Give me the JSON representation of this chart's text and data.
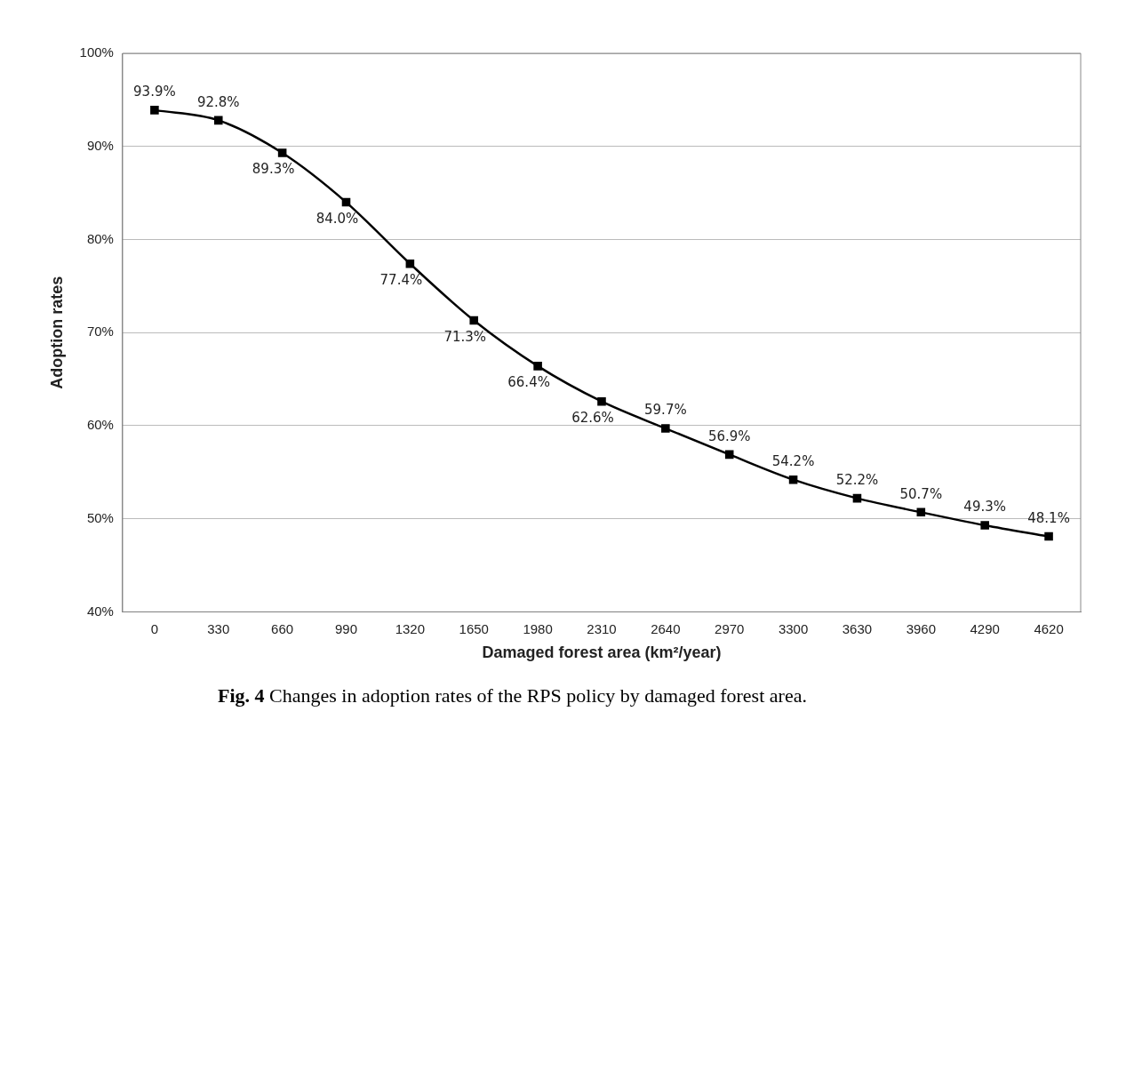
{
  "chart_data": {
    "type": "line",
    "xlabel": "Damaged forest area (km²/year)",
    "ylabel": "Adoption rates",
    "categories": [
      "0",
      "330",
      "660",
      "990",
      "1320",
      "1650",
      "1980",
      "2310",
      "2640",
      "2970",
      "3300",
      "3630",
      "3960",
      "4290",
      "4620"
    ],
    "series": [
      {
        "color": "#000000",
        "values": [
          93.9,
          92.8,
          89.3,
          84.0,
          77.4,
          71.3,
          66.4,
          62.6,
          59.7,
          56.9,
          54.2,
          52.2,
          50.7,
          49.3,
          48.1
        ],
        "value_labels": [
          "93.9%",
          "92.8%",
          "89.3%",
          "84.0%",
          "77.4%",
          "71.3%",
          "66.4%",
          "62.6%",
          "59.7%",
          "56.9%",
          "54.2%",
          "52.2%",
          "50.7%",
          "49.3%",
          "48.1%"
        ]
      }
    ],
    "ylim": [
      40,
      100
    ],
    "yticks": [
      {
        "value": 40,
        "label": "40%"
      },
      {
        "value": 50,
        "label": "50%"
      },
      {
        "value": 60,
        "label": "60%"
      },
      {
        "value": 70,
        "label": "70%"
      },
      {
        "value": 80,
        "label": "80%"
      },
      {
        "value": 90,
        "label": "90%"
      },
      {
        "value": 100,
        "label": "100%"
      }
    ],
    "grid": "y",
    "marker": "square",
    "line_style": "solid",
    "legend": false,
    "annotations": [
      "Fig. 4",
      "Changes in adoption rates of the RPS policy by damaged forest area."
    ]
  }
}
